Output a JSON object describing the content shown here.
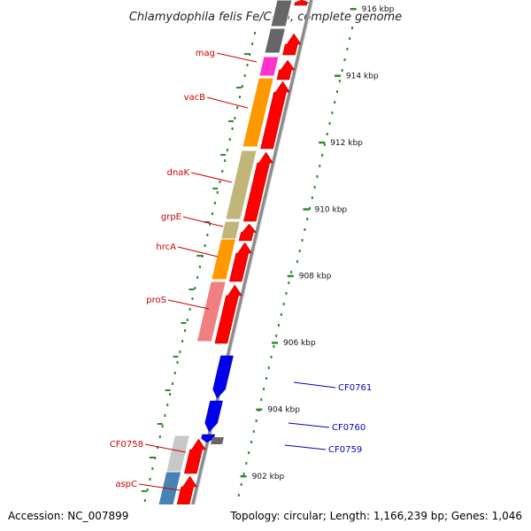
{
  "title": "Chlamydophila felis Fe/C-56, complete genome",
  "footer": {
    "accession": "Accession: NC_007899",
    "topology": "Topology: circular; Length: 1,166,239 bp; Genes: 1,046"
  },
  "colors": {
    "backbone": "#8c8c8c",
    "tick": "#2e8b2e",
    "forward_arrow": "#ff0000",
    "reverse_arrow": "#0000ee",
    "label_forward": "#cc0000",
    "label_reverse": "#0000bb",
    "bar_grey": "#666666",
    "bar_magenta": "#ff33cc",
    "bar_orange": "#ff9900",
    "bar_khaki": "#c0b67a",
    "bar_pink": "#f08080",
    "bar_lightgrey": "#c8c8c8",
    "bar_blue": "#4682b4"
  },
  "axis": {
    "unit": "kbp",
    "ticks": [
      {
        "kbp": 916,
        "label": "916 kbp"
      },
      {
        "kbp": 914,
        "label": "914 kbp"
      },
      {
        "kbp": 912,
        "label": "912 kbp"
      },
      {
        "kbp": 910,
        "label": "910 kbp"
      },
      {
        "kbp": 908,
        "label": "908 kbp"
      },
      {
        "kbp": 906,
        "label": "906 kbp"
      },
      {
        "kbp": 904,
        "label": "904 kbp"
      },
      {
        "kbp": 902,
        "label": "902 kbp"
      }
    ]
  },
  "genes_forward": [
    {
      "label": "mag",
      "category": "bar_magenta"
    },
    {
      "label": "vacB",
      "category": "bar_orange"
    },
    {
      "label": "dnaK",
      "category": "bar_khaki"
    },
    {
      "label": "grpE",
      "category": "bar_khaki"
    },
    {
      "label": "hrcA",
      "category": "bar_orange"
    },
    {
      "label": "proS",
      "category": "bar_pink"
    },
    {
      "label": "CF0758",
      "category": "bar_lightgrey"
    },
    {
      "label": "aspC",
      "category": "bar_blue"
    }
  ],
  "genes_reverse": [
    {
      "label": "CF0761"
    },
    {
      "label": "CF0760"
    },
    {
      "label": "CF0759"
    }
  ]
}
